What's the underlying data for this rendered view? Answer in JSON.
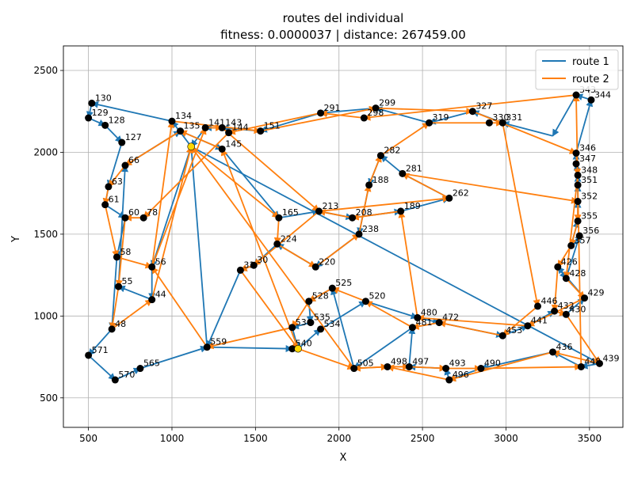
{
  "chart_data": {
    "type": "line",
    "title_line1": "routes del individual",
    "title_line2": "fitness: 0.0000037 | distance: 267459.00",
    "xlabel": "X",
    "ylabel": "Y",
    "xlim": [
      350,
      3700
    ],
    "ylim": [
      320,
      2650
    ],
    "xticks": [
      500,
      1000,
      1500,
      2000,
      2500,
      3000,
      3500
    ],
    "yticks": [
      500,
      1000,
      1500,
      2000,
      2500
    ],
    "grid": true,
    "legend_position": "top-right",
    "series": [
      {
        "name": "route 1",
        "color": "#1f77b4"
      },
      {
        "name": "route 2",
        "color": "#ff7f0e"
      }
    ],
    "depots": [
      [
        1115,
        2035
      ],
      [
        1755,
        800
      ]
    ],
    "labeled_points": [
      {
        "id": "130",
        "x": 520,
        "y": 2300
      },
      {
        "id": "129",
        "x": 500,
        "y": 2210
      },
      {
        "id": "128",
        "x": 600,
        "y": 2165
      },
      {
        "id": "127",
        "x": 700,
        "y": 2060
      },
      {
        "id": "134",
        "x": 1000,
        "y": 2190
      },
      {
        "id": "135",
        "x": 1050,
        "y": 2130
      },
      {
        "id": "141",
        "x": 1200,
        "y": 2150
      },
      {
        "id": "143",
        "x": 1300,
        "y": 2150
      },
      {
        "id": "144",
        "x": 1340,
        "y": 2120
      },
      {
        "id": "145",
        "x": 1300,
        "y": 2020
      },
      {
        "id": "151",
        "x": 1530,
        "y": 2130
      },
      {
        "id": "291",
        "x": 1890,
        "y": 2240
      },
      {
        "id": "299",
        "x": 2220,
        "y": 2270
      },
      {
        "id": "298",
        "x": 2150,
        "y": 2210
      },
      {
        "id": "319",
        "x": 2540,
        "y": 2180
      },
      {
        "id": "327",
        "x": 2800,
        "y": 2250
      },
      {
        "id": "330",
        "x": 2900,
        "y": 2180
      },
      {
        "id": "331",
        "x": 2980,
        "y": 2180
      },
      {
        "id": "343",
        "x": 3420,
        "y": 2350
      },
      {
        "id": "344",
        "x": 3510,
        "y": 2320
      },
      {
        "id": "346",
        "x": 3420,
        "y": 1995
      },
      {
        "id": "347",
        "x": 3420,
        "y": 1930
      },
      {
        "id": "348",
        "x": 3430,
        "y": 1860
      },
      {
        "id": "351",
        "x": 3430,
        "y": 1800
      },
      {
        "id": "352",
        "x": 3430,
        "y": 1700
      },
      {
        "id": "355",
        "x": 3430,
        "y": 1580
      },
      {
        "id": "356",
        "x": 3440,
        "y": 1490
      },
      {
        "id": "357",
        "x": 3390,
        "y": 1430
      },
      {
        "id": "281",
        "x": 2380,
        "y": 1870
      },
      {
        "id": "282",
        "x": 2250,
        "y": 1980
      },
      {
        "id": "188",
        "x": 2180,
        "y": 1800
      },
      {
        "id": "189",
        "x": 2370,
        "y": 1640
      },
      {
        "id": "238",
        "x": 2120,
        "y": 1500
      },
      {
        "id": "208",
        "x": 2080,
        "y": 1600
      },
      {
        "id": "262",
        "x": 2660,
        "y": 1720
      },
      {
        "id": "429",
        "x": 3470,
        "y": 1110
      },
      {
        "id": "428",
        "x": 3360,
        "y": 1230
      },
      {
        "id": "426",
        "x": 3310,
        "y": 1300
      },
      {
        "id": "430",
        "x": 3360,
        "y": 1010
      },
      {
        "id": "432",
        "x": 3290,
        "y": 1030
      },
      {
        "id": "446",
        "x": 3190,
        "y": 1060
      },
      {
        "id": "441",
        "x": 3130,
        "y": 940
      },
      {
        "id": "453",
        "x": 2980,
        "y": 880
      },
      {
        "id": "436",
        "x": 3280,
        "y": 780
      },
      {
        "id": "439",
        "x": 3560,
        "y": 710
      },
      {
        "id": "448",
        "x": 3450,
        "y": 690
      },
      {
        "id": "497",
        "x": 2420,
        "y": 690
      },
      {
        "id": "498",
        "x": 2290,
        "y": 690
      },
      {
        "id": "496",
        "x": 2660,
        "y": 610
      },
      {
        "id": "493",
        "x": 2640,
        "y": 680
      },
      {
        "id": "490",
        "x": 2850,
        "y": 680
      },
      {
        "id": "481",
        "x": 2440,
        "y": 930
      },
      {
        "id": "480",
        "x": 2470,
        "y": 990
      },
      {
        "id": "472",
        "x": 2600,
        "y": 960
      },
      {
        "id": "505",
        "x": 2090,
        "y": 680
      },
      {
        "id": "520",
        "x": 2160,
        "y": 1090
      },
      {
        "id": "525",
        "x": 1960,
        "y": 1170
      },
      {
        "id": "528",
        "x": 1820,
        "y": 1090
      },
      {
        "id": "534",
        "x": 1890,
        "y": 920
      },
      {
        "id": "535",
        "x": 1830,
        "y": 960
      },
      {
        "id": "536",
        "x": 1720,
        "y": 930
      },
      {
        "id": "540",
        "x": 1720,
        "y": 800
      },
      {
        "id": "559",
        "x": 1210,
        "y": 810
      },
      {
        "id": "565",
        "x": 810,
        "y": 680
      },
      {
        "id": "570",
        "x": 660,
        "y": 610
      },
      {
        "id": "571",
        "x": 500,
        "y": 760
      },
      {
        "id": "48",
        "x": 640,
        "y": 920
      },
      {
        "id": "44",
        "x": 880,
        "y": 1100
      },
      {
        "id": "55",
        "x": 680,
        "y": 1180
      },
      {
        "id": "56",
        "x": 880,
        "y": 1300
      },
      {
        "id": "58",
        "x": 670,
        "y": 1360
      },
      {
        "id": "60",
        "x": 720,
        "y": 1600
      },
      {
        "id": "63",
        "x": 620,
        "y": 1790
      },
      {
        "id": "61",
        "x": 600,
        "y": 1680
      },
      {
        "id": "66",
        "x": 720,
        "y": 1920
      },
      {
        "id": "78",
        "x": 830,
        "y": 1600
      },
      {
        "id": "165",
        "x": 1640,
        "y": 1600
      },
      {
        "id": "213",
        "x": 1880,
        "y": 1640
      },
      {
        "id": "220",
        "x": 1860,
        "y": 1300
      },
      {
        "id": "224",
        "x": 1630,
        "y": 1440
      },
      {
        "id": "30",
        "x": 1490,
        "y": 1310
      },
      {
        "id": "31",
        "x": 1410,
        "y": 1280
      }
    ],
    "route_1_path": [
      [
        1115,
        2035
      ],
      [
        1000,
        2190
      ],
      [
        520,
        2300
      ],
      [
        500,
        2210
      ],
      [
        600,
        2165
      ],
      [
        700,
        2060
      ],
      [
        620,
        1790
      ],
      [
        600,
        1680
      ],
      [
        720,
        1600
      ],
      [
        670,
        1360
      ],
      [
        640,
        920
      ],
      [
        500,
        760
      ],
      [
        660,
        610
      ],
      [
        810,
        680
      ],
      [
        1210,
        810
      ],
      [
        1720,
        800
      ],
      [
        1755,
        800
      ],
      [
        1890,
        920
      ],
      [
        2160,
        1090
      ],
      [
        2470,
        990
      ],
      [
        2600,
        960
      ],
      [
        2980,
        880
      ],
      [
        3130,
        940
      ],
      [
        3290,
        1030
      ],
      [
        3360,
        1010
      ],
      [
        3470,
        1110
      ],
      [
        3310,
        1300
      ],
      [
        3360,
        1230
      ],
      [
        3440,
        1490
      ],
      [
        3390,
        1430
      ],
      [
        3430,
        1580
      ],
      [
        3430,
        1700
      ],
      [
        3430,
        1800
      ],
      [
        3430,
        1860
      ],
      [
        3420,
        1930
      ],
      [
        3420,
        1995
      ],
      [
        3510,
        2320
      ],
      [
        3420,
        2350
      ],
      [
        3280,
        2100
      ],
      [
        2980,
        2180
      ],
      [
        2800,
        2250
      ],
      [
        2540,
        2180
      ],
      [
        2220,
        2270
      ],
      [
        1890,
        2240
      ],
      [
        1530,
        2130
      ],
      [
        1300,
        2150
      ],
      [
        1200,
        2150
      ],
      [
        1115,
        2035
      ],
      [
        880,
        1300
      ],
      [
        880,
        1100
      ],
      [
        680,
        1180
      ],
      [
        720,
        1920
      ],
      [
        1050,
        2130
      ],
      [
        1300,
        2020
      ],
      [
        1640,
        1600
      ],
      [
        1880,
        1640
      ],
      [
        2080,
        1600
      ],
      [
        2370,
        1640
      ],
      [
        2660,
        1720
      ],
      [
        2380,
        1870
      ],
      [
        2250,
        1980
      ],
      [
        2180,
        1800
      ],
      [
        2120,
        1500
      ],
      [
        1860,
        1300
      ],
      [
        1630,
        1440
      ],
      [
        1490,
        1310
      ],
      [
        1410,
        1280
      ],
      [
        1210,
        810
      ],
      [
        1115,
        2035
      ],
      [
        3560,
        710
      ],
      [
        3450,
        690
      ],
      [
        3280,
        780
      ],
      [
        2850,
        680
      ],
      [
        2660,
        610
      ],
      [
        2640,
        680
      ],
      [
        2420,
        690
      ],
      [
        2440,
        930
      ],
      [
        2090,
        680
      ],
      [
        1960,
        1170
      ],
      [
        1820,
        1090
      ],
      [
        1830,
        960
      ],
      [
        1720,
        930
      ],
      [
        1755,
        800
      ]
    ],
    "route_2_path": [
      [
        1755,
        800
      ],
      [
        2090,
        680
      ],
      [
        2290,
        690
      ],
      [
        2420,
        690
      ],
      [
        2640,
        680
      ],
      [
        2850,
        680
      ],
      [
        3450,
        690
      ],
      [
        3420,
        2350
      ],
      [
        2150,
        2210
      ],
      [
        1890,
        2240
      ],
      [
        1340,
        2120
      ],
      [
        830,
        1600
      ],
      [
        720,
        1600
      ],
      [
        680,
        1180
      ],
      [
        640,
        920
      ],
      [
        880,
        1100
      ],
      [
        1115,
        2035
      ],
      [
        1640,
        1600
      ],
      [
        1630,
        1440
      ],
      [
        1860,
        1300
      ],
      [
        2120,
        1500
      ],
      [
        2180,
        1800
      ],
      [
        2250,
        1980
      ],
      [
        2540,
        2180
      ],
      [
        2980,
        2180
      ],
      [
        3190,
        1060
      ],
      [
        2980,
        880
      ],
      [
        2600,
        960
      ],
      [
        2440,
        930
      ],
      [
        2160,
        1090
      ],
      [
        1960,
        1170
      ],
      [
        1820,
        1090
      ],
      [
        1720,
        930
      ],
      [
        1210,
        810
      ],
      [
        880,
        1300
      ],
      [
        1000,
        2190
      ],
      [
        1530,
        2130
      ],
      [
        2220,
        2270
      ],
      [
        2800,
        2250
      ],
      [
        3420,
        1995
      ],
      [
        3430,
        1860
      ],
      [
        3360,
        1230
      ],
      [
        3470,
        1110
      ],
      [
        3130,
        940
      ],
      [
        2470,
        990
      ],
      [
        2370,
        1640
      ],
      [
        2080,
        1600
      ],
      [
        1880,
        1640
      ],
      [
        1490,
        1310
      ],
      [
        1410,
        1280
      ],
      [
        1755,
        800
      ],
      [
        1300,
        2020
      ],
      [
        1050,
        2130
      ],
      [
        720,
        1920
      ],
      [
        620,
        1790
      ],
      [
        600,
        1680
      ],
      [
        670,
        1360
      ],
      [
        880,
        1300
      ],
      [
        1200,
        2150
      ],
      [
        1300,
        2150
      ],
      [
        1880,
        1640
      ],
      [
        2660,
        1720
      ],
      [
        2380,
        1870
      ],
      [
        3430,
        1700
      ],
      [
        3430,
        1580
      ],
      [
        3390,
        1430
      ],
      [
        3310,
        1300
      ],
      [
        3290,
        1030
      ],
      [
        3360,
        1010
      ],
      [
        3560,
        710
      ],
      [
        3280,
        780
      ],
      [
        2660,
        610
      ],
      [
        2290,
        690
      ],
      [
        2090,
        680
      ],
      [
        1115,
        2035
      ]
    ]
  }
}
